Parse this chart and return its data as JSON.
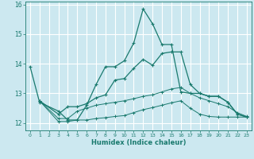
{
  "title": "",
  "xlabel": "Humidex (Indice chaleur)",
  "bg_color": "#cce8f0",
  "grid_color": "#ffffff",
  "line_color": "#1a7a6e",
  "xlim": [
    -0.5,
    23.5
  ],
  "ylim": [
    11.75,
    16.1
  ],
  "yticks": [
    12,
    13,
    14,
    15,
    16
  ],
  "xticks": [
    0,
    1,
    2,
    3,
    4,
    5,
    6,
    7,
    8,
    9,
    10,
    11,
    12,
    13,
    14,
    15,
    16,
    17,
    18,
    19,
    20,
    21,
    22,
    23
  ],
  "curve1_x": [
    0,
    1,
    3,
    4,
    5,
    6,
    7,
    8,
    9,
    10,
    11,
    12,
    13,
    14,
    15,
    16,
    17,
    18,
    19,
    20,
    21,
    22,
    23
  ],
  "curve1_y": [
    13.9,
    12.7,
    12.4,
    12.1,
    12.1,
    12.6,
    13.3,
    13.9,
    13.9,
    14.1,
    14.7,
    15.85,
    15.35,
    14.65,
    14.65,
    13.05,
    13.0,
    13.0,
    12.9,
    12.9,
    12.7,
    12.3,
    12.2
  ],
  "curve2_x": [
    1,
    3,
    4,
    5,
    6,
    7,
    8,
    9,
    10,
    11,
    12,
    13,
    14,
    15,
    16,
    17,
    18,
    19,
    20,
    21,
    22,
    23
  ],
  "curve2_y": [
    12.75,
    12.3,
    12.55,
    12.55,
    12.65,
    12.85,
    12.95,
    13.45,
    13.5,
    13.85,
    14.15,
    13.95,
    14.35,
    14.4,
    14.4,
    13.3,
    13.0,
    12.9,
    12.9,
    12.7,
    12.3,
    12.2
  ],
  "curve3_x": [
    1,
    3,
    4,
    5,
    6,
    7,
    8,
    9,
    10,
    11,
    12,
    13,
    14,
    15,
    16,
    17,
    18,
    19,
    20,
    21,
    22,
    23
  ],
  "curve3_y": [
    12.75,
    12.15,
    12.15,
    12.4,
    12.5,
    12.6,
    12.65,
    12.7,
    12.75,
    12.82,
    12.9,
    12.95,
    13.05,
    13.15,
    13.2,
    13.0,
    12.85,
    12.75,
    12.65,
    12.55,
    12.35,
    12.22
  ],
  "curve4_x": [
    1,
    3,
    4,
    5,
    6,
    7,
    8,
    9,
    10,
    11,
    12,
    13,
    14,
    15,
    16,
    17,
    18,
    19,
    20,
    21,
    22,
    23
  ],
  "curve4_y": [
    12.75,
    12.05,
    12.05,
    12.1,
    12.1,
    12.15,
    12.18,
    12.22,
    12.25,
    12.35,
    12.45,
    12.52,
    12.6,
    12.68,
    12.75,
    12.5,
    12.3,
    12.22,
    12.2,
    12.2,
    12.2,
    12.2
  ]
}
